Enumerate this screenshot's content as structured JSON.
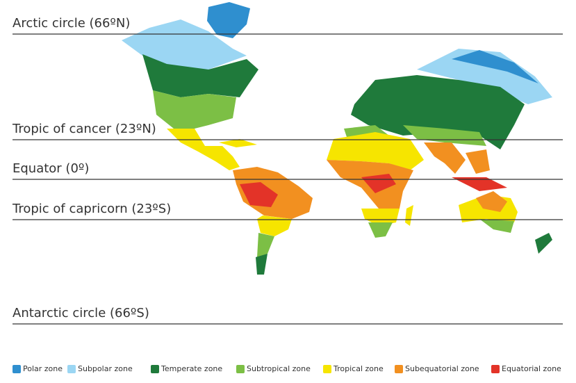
{
  "lines": [
    {
      "label": "Arctic circle (66ºN)"
    },
    {
      "label": "Tropic of cancer (23ºN)"
    },
    {
      "label": "Equator (0º)"
    },
    {
      "label": "Tropic of capricorn (23ºS)"
    },
    {
      "label": "Antarctic circle (66ºS)"
    }
  ],
  "legend": [
    {
      "label": "Polar zone",
      "color": "#2f8fcf"
    },
    {
      "label": "Subpolar zone",
      "color": "#9bd6f3"
    },
    {
      "label": "Temperate zone",
      "color": "#1f7a3b"
    },
    {
      "label": "Subtropical zone",
      "color": "#7cbf45"
    },
    {
      "label": "Tropical zone",
      "color": "#f6e500"
    },
    {
      "label": "Subequatorial zone",
      "color": "#f29020"
    },
    {
      "label": "Equatorial zone",
      "color": "#e33328"
    }
  ]
}
